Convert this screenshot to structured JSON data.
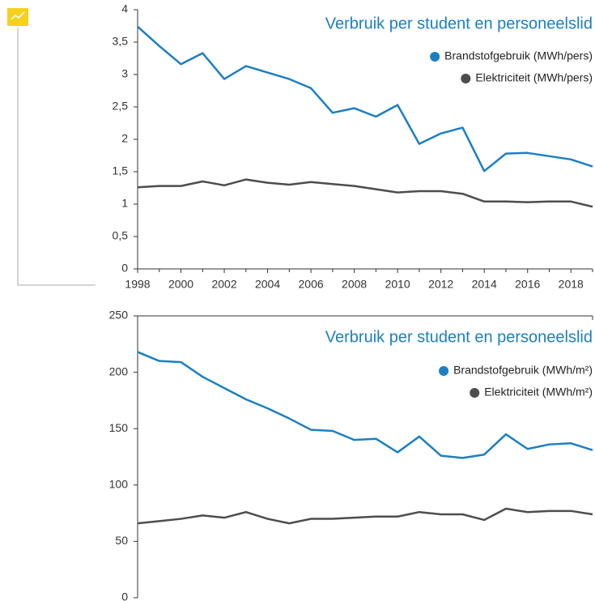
{
  "chart_data": [
    {
      "type": "line",
      "title": "Verbruik per student en personeelslid",
      "x": [
        1998,
        1999,
        2000,
        2001,
        2002,
        2003,
        2004,
        2005,
        2006,
        2007,
        2008,
        2009,
        2010,
        2011,
        2012,
        2013,
        2014,
        2015,
        2016,
        2017,
        2018,
        2019
      ],
      "series": [
        {
          "name": "Brandstofgebruik (MWh/pers)",
          "color": "#1b7fc4",
          "values": [
            3.74,
            3.44,
            3.16,
            3.33,
            2.93,
            3.13,
            3.03,
            2.93,
            2.79,
            2.41,
            2.48,
            2.35,
            2.53,
            1.93,
            2.09,
            2.18,
            1.51,
            1.78,
            1.79,
            1.74,
            1.69,
            1.58
          ]
        },
        {
          "name": "Elektriciteit (MWh/pers)",
          "color": "#4d4d4d",
          "values": [
            1.26,
            1.28,
            1.28,
            1.35,
            1.29,
            1.38,
            1.33,
            1.3,
            1.34,
            1.31,
            1.28,
            1.23,
            1.18,
            1.2,
            1.2,
            1.16,
            1.04,
            1.04,
            1.03,
            1.04,
            1.04,
            0.96
          ]
        }
      ],
      "xlim": [
        1998,
        2019
      ],
      "xticks": [
        1998,
        2000,
        2002,
        2004,
        2006,
        2008,
        2010,
        2012,
        2014,
        2016,
        2018
      ],
      "ylim": [
        0,
        4
      ],
      "yticks": [
        0,
        {
          "value": 0.5,
          "label": "0,5"
        },
        1,
        {
          "value": 1.5,
          "label": "1,5"
        },
        2,
        {
          "value": 2.5,
          "label": "2,5"
        },
        3,
        {
          "value": 3.5,
          "label": "3,5"
        },
        4
      ],
      "legend": "top-right"
    },
    {
      "type": "line",
      "title": "Verbruik per student en personeelslid",
      "x": [
        1998,
        1999,
        2000,
        2001,
        2002,
        2003,
        2004,
        2005,
        2006,
        2007,
        2008,
        2009,
        2010,
        2011,
        2012,
        2013,
        2014,
        2015,
        2016,
        2017,
        2018,
        2019
      ],
      "series": [
        {
          "name": "Brandstofgebruik (MWh/m²)",
          "color": "#1b7fc4",
          "values": [
            218,
            210,
            209,
            196,
            186,
            176,
            168,
            159,
            149,
            148,
            140,
            141,
            129,
            143,
            126,
            124,
            127,
            145,
            132,
            136,
            137,
            131
          ]
        },
        {
          "name": "Elektriciteit (MWh/m²)",
          "color": "#4d4d4d",
          "values": [
            66,
            68,
            70,
            73,
            71,
            76,
            70,
            66,
            70,
            70,
            71,
            72,
            72,
            76,
            74,
            74,
            69,
            79,
            76,
            77,
            77,
            74
          ]
        }
      ],
      "xlim": [
        1998,
        2019
      ],
      "ylim": [
        0,
        250
      ],
      "yticks": [
        0,
        50,
        100,
        150,
        200,
        250
      ],
      "legend": "top-right"
    }
  ]
}
